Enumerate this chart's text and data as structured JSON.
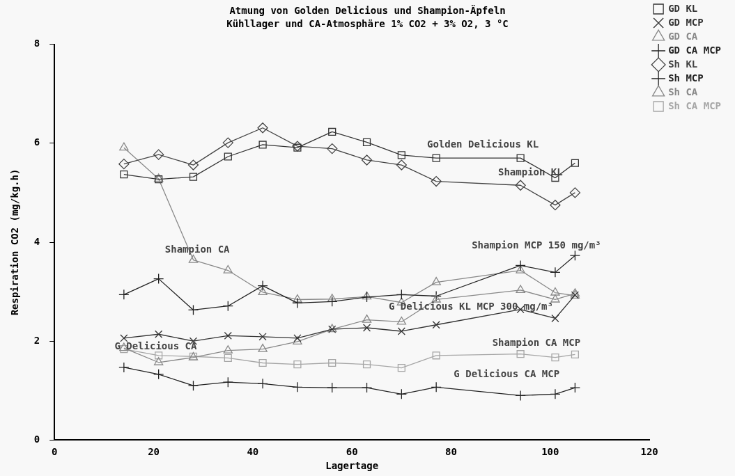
{
  "chart_data": {
    "type": "line",
    "title": "Atmung von Golden Delicious und Shampion-Äpfeln",
    "subtitle": "Kühllager und CA-Atmosphäre 1% CO2 + 3% O2, 3 °C",
    "xlabel": "Lagertage",
    "ylabel": "Respiration CO2 (mg/kg.h)",
    "x": [
      14,
      21,
      28,
      35,
      42,
      49,
      56,
      63,
      70,
      77,
      94,
      101,
      105
    ],
    "xlim": [
      0,
      120
    ],
    "xticks": [
      0,
      20,
      40,
      60,
      80,
      100,
      120
    ],
    "ylim": [
      0,
      8
    ],
    "yticks": [
      0,
      2,
      4,
      6,
      8
    ],
    "grid": false,
    "legend": "top right",
    "series": [
      {
        "name": "GD KL",
        "color": "#333333",
        "marker": "square",
        "values": [
          5.37,
          5.27,
          5.32,
          5.73,
          5.97,
          5.91,
          6.23,
          6.02,
          5.76,
          5.7,
          5.7,
          5.3,
          5.6
        ]
      },
      {
        "name": "GD MCP",
        "color": "#333333",
        "marker": "cross",
        "values": [
          2.06,
          2.14,
          2.0,
          2.11,
          2.09,
          2.06,
          2.24,
          2.27,
          2.2,
          2.33,
          2.64,
          2.46,
          2.93
        ]
      },
      {
        "name": "GD CA",
        "color": "#888888",
        "marker": "triangle",
        "values": [
          1.86,
          1.57,
          1.67,
          1.81,
          1.84,
          1.99,
          2.24,
          2.43,
          2.39,
          2.84,
          3.03,
          2.84,
          2.96
        ]
      },
      {
        "name": "GD CA MCP",
        "color": "#222222",
        "marker": "cross",
        "values": [
          1.47,
          1.33,
          1.1,
          1.17,
          1.14,
          1.07,
          1.06,
          1.06,
          0.93,
          1.07,
          0.9,
          0.93,
          1.06
        ]
      },
      {
        "name": "Sh KL",
        "color": "#444444",
        "marker": "diamond",
        "values": [
          5.58,
          5.77,
          5.56,
          6.01,
          6.31,
          5.94,
          5.89,
          5.66,
          5.56,
          5.23,
          5.15,
          4.75,
          5.0
        ]
      },
      {
        "name": "Sh MCP",
        "color": "#222222",
        "marker": "cross",
        "values": [
          2.94,
          3.26,
          2.63,
          2.71,
          3.12,
          2.77,
          2.8,
          2.89,
          2.94,
          2.91,
          3.53,
          3.39,
          3.73
        ]
      },
      {
        "name": "Sh CA",
        "color": "#888888",
        "marker": "triangle",
        "values": [
          5.91,
          5.28,
          3.64,
          3.43,
          2.99,
          2.84,
          2.85,
          2.9,
          2.78,
          3.19,
          3.43,
          2.98,
          2.92
        ]
      },
      {
        "name": "Sh CA MCP",
        "color": "#a6a6a6",
        "marker": "square",
        "values": [
          1.84,
          1.71,
          1.69,
          1.66,
          1.56,
          1.53,
          1.56,
          1.53,
          1.46,
          1.71,
          1.74,
          1.67,
          1.73
        ]
      }
    ],
    "annotations": [
      "Golden Delicious KL",
      "Shampion KL",
      "Shampion CA",
      "Shampion MCP 150 mg/m³",
      "G Delicious KL MCP 300 mg/m³",
      "G Delicious CA",
      "Shampion CA MCP",
      "G Delicious CA MCP"
    ]
  }
}
